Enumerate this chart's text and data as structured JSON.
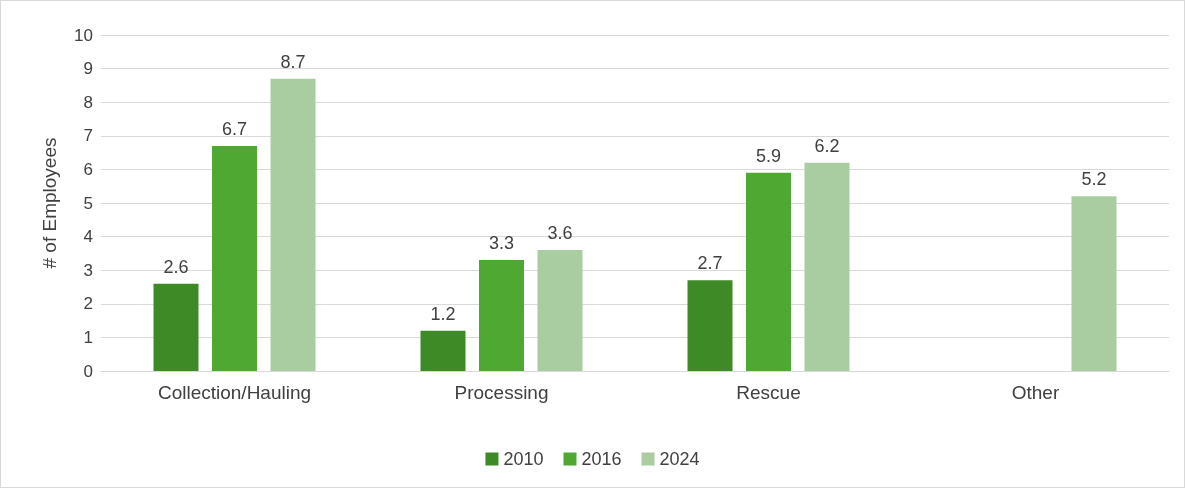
{
  "chart_data": {
    "type": "bar",
    "ylabel": "# of Employees",
    "categories": [
      "Collection/Hauling",
      "Processing",
      "Rescue",
      "Other"
    ],
    "series": [
      {
        "name": "2010",
        "color": "#3d8a26",
        "values": [
          2.6,
          1.2,
          2.7,
          null
        ]
      },
      {
        "name": "2016",
        "color": "#4fa832",
        "values": [
          6.7,
          3.3,
          5.9,
          null
        ]
      },
      {
        "name": "2024",
        "color": "#a9cca0",
        "values": [
          8.7,
          3.6,
          6.2,
          5.2
        ]
      }
    ],
    "ylim": [
      0,
      10
    ],
    "yticks": [
      0,
      1,
      2,
      3,
      4,
      5,
      6,
      7,
      8,
      9,
      10
    ],
    "grid": "y",
    "legend": "bottom",
    "data_labels": true
  }
}
